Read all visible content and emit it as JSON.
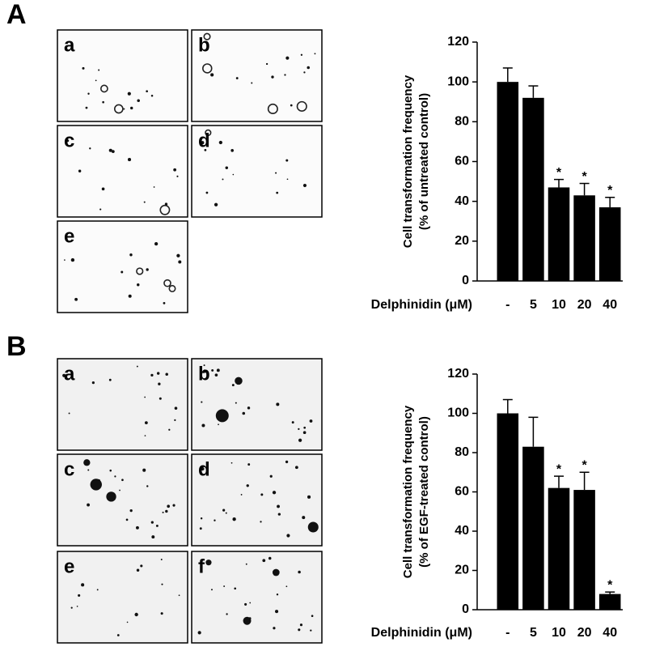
{
  "figure": {
    "panel_labels": [
      "A",
      "B"
    ],
    "image_labels": [
      [
        "a",
        "b",
        "c",
        "d",
        "e"
      ],
      [
        "a",
        "b",
        "c",
        "d",
        "e",
        "f"
      ]
    ]
  },
  "chart_data": [
    {
      "type": "bar",
      "xlabel": "Delphinidin (μM)",
      "ylabel": [
        "Cell transformation frequency",
        "(% of untreated control)"
      ],
      "categories": [
        "-",
        "5",
        "10",
        "20",
        "40"
      ],
      "values": [
        100,
        92,
        47,
        43,
        37
      ],
      "errors": [
        7,
        6,
        4,
        6,
        5
      ],
      "significance": [
        null,
        null,
        "*",
        "*",
        "*"
      ],
      "color": "#000000",
      "ylim": [
        0,
        120
      ],
      "yticks": [
        0,
        20,
        40,
        60,
        80,
        100,
        120
      ]
    },
    {
      "type": "bar",
      "xlabel": "Delphinidin (μM)",
      "ylabel": [
        "Cell transformation frequency",
        "(% of EGF-treated control)"
      ],
      "categories": [
        "-",
        "5",
        "10",
        "20",
        "40"
      ],
      "values": [
        100,
        83,
        62,
        61,
        8
      ],
      "errors": [
        7,
        15,
        6,
        9,
        1
      ],
      "significance": [
        null,
        null,
        "*",
        "*",
        "*"
      ],
      "color": "#000000",
      "ylim": [
        0,
        120
      ],
      "yticks": [
        0,
        20,
        40,
        60,
        80,
        100,
        120
      ]
    }
  ]
}
